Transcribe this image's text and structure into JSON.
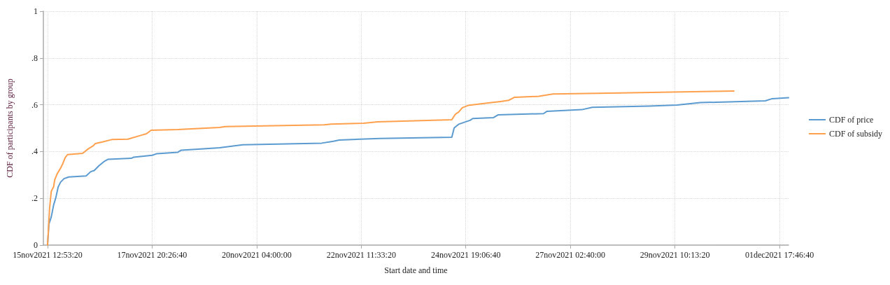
{
  "chart_data": {
    "type": "line",
    "xlabel": "Start date and time",
    "ylabel": "CDF of participants by group",
    "xlim": [
      "2021-11-15T10:40",
      "2021-12-01T22:35"
    ],
    "xticks": [
      {
        "value": "2021-11-15T12:53:20",
        "label": "15nov2021 12:53:20"
      },
      {
        "value": "2021-11-17T20:26:40",
        "label": "17nov2021 20:26:40"
      },
      {
        "value": "2021-11-20T04:00:00",
        "label": "20nov2021 04:00:00"
      },
      {
        "value": "2021-11-22T11:33:20",
        "label": "22nov2021 11:33:20"
      },
      {
        "value": "2021-11-24T19:06:40",
        "label": "24nov2021 19:06:40"
      },
      {
        "value": "2021-11-27T02:40:00",
        "label": "27nov2021 02:40:00"
      },
      {
        "value": "2021-11-29T10:13:20",
        "label": "29nov2021 10:13:20"
      },
      {
        "value": "2021-12-01T17:46:40",
        "label": "01dec2021 17:46:40"
      }
    ],
    "ylim": [
      0,
      1
    ],
    "yticks": [
      0,
      {
        "value": 0.2,
        "label": ".2"
      },
      {
        "value": 0.4,
        "label": ".4"
      },
      {
        "value": 0.6,
        "label": ".6"
      },
      {
        "value": 0.8,
        "label": ".8"
      },
      1
    ],
    "grid": true,
    "legend": "right",
    "marker": "none",
    "line_style": "solid",
    "series": [
      {
        "name": "CDF of price",
        "color": "#5b9bd0",
        "x": [
          "2021-11-15T12:53",
          "2021-11-15T13:37",
          "2021-11-15T14:51",
          "2021-11-15T16:06",
          "2021-11-15T17:19",
          "2021-11-15T18:33",
          "2021-11-15T19:48",
          "2021-11-15T21:39",
          "2021-11-16T00:06",
          "2021-11-16T09:21",
          "2021-11-16T11:50",
          "2021-11-16T13:41",
          "2021-11-16T16:10",
          "2021-11-16T19:14",
          "2021-11-16T21:05",
          "2021-11-17T09:24",
          "2021-11-17T10:40",
          "2021-11-17T20:31",
          "2021-11-17T23:00",
          "2021-11-18T10:06",
          "2021-11-18T11:57",
          "2021-11-18T22:25",
          "2021-11-19T08:18",
          "2021-11-19T20:38",
          "2021-11-21T14:36",
          "2021-11-21T20:45",
          "2021-11-21T23:51",
          "2021-11-22T21:26",
          "2021-11-24T11:40",
          "2021-11-24T12:55",
          "2021-11-24T15:22",
          "2021-11-24T21:33",
          "2021-11-24T22:46",
          "2021-11-25T09:52",
          "2021-11-25T12:21",
          "2021-11-26T12:24",
          "2021-11-26T14:15",
          "2021-11-27T08:46",
          "2021-11-27T14:19",
          "2021-11-28T20:33",
          "2021-11-29T11:21",
          "2021-11-29T23:41",
          "2021-12-01T10:13",
          "2021-12-01T13:55",
          "2021-12-01T22:35"
        ],
        "values": [
          0,
          0.09,
          0.12,
          0.171,
          0.204,
          0.249,
          0.269,
          0.284,
          0.291,
          0.296,
          0.314,
          0.319,
          0.339,
          0.359,
          0.367,
          0.371,
          0.376,
          0.384,
          0.391,
          0.397,
          0.406,
          0.411,
          0.416,
          0.429,
          0.436,
          0.444,
          0.449,
          0.456,
          0.461,
          0.501,
          0.517,
          0.534,
          0.541,
          0.545,
          0.557,
          0.562,
          0.572,
          0.579,
          0.589,
          0.594,
          0.599,
          0.609,
          0.617,
          0.626,
          0.63
        ]
      },
      {
        "name": "CDF of subsidy",
        "color": "#ffa04d",
        "x": [
          "2021-11-15T12:53",
          "2021-11-15T14:00",
          "2021-11-15T14:51",
          "2021-11-15T16:06",
          "2021-11-15T16:42",
          "2021-11-15T17:57",
          "2021-11-15T19:48",
          "2021-11-15T21:02",
          "2021-11-15T22:15",
          "2021-11-15T23:30",
          "2021-11-16T07:30",
          "2021-11-16T10:37",
          "2021-11-16T13:03",
          "2021-11-16T14:19",
          "2021-11-16T18:01",
          "2021-11-16T22:56",
          "2021-11-17T07:33",
          "2021-11-17T14:22",
          "2021-11-17T17:26",
          "2021-11-17T19:55",
          "2021-11-18T10:06",
          "2021-11-19T08:18",
          "2021-11-19T11:22",
          "2021-11-21T15:49",
          "2021-11-21T19:31",
          "2021-11-22T12:48",
          "2021-11-22T20:13",
          "2021-11-24T11:40",
          "2021-11-24T13:31",
          "2021-11-24T15:22",
          "2021-11-24T17:13",
          "2021-11-24T20:19",
          "2021-11-25T08:39",
          "2021-11-25T13:34",
          "2021-11-25T17:54",
          "2021-11-25T20:58",
          "2021-11-26T09:56",
          "2021-11-26T17:20",
          "2021-11-28T10:40",
          "2021-11-30T17:34"
        ],
        "values": [
          0,
          0.16,
          0.23,
          0.249,
          0.279,
          0.304,
          0.329,
          0.349,
          0.374,
          0.387,
          0.392,
          0.412,
          0.424,
          0.434,
          0.441,
          0.451,
          0.453,
          0.469,
          0.476,
          0.491,
          0.494,
          0.503,
          0.507,
          0.514,
          0.517,
          0.521,
          0.527,
          0.536,
          0.559,
          0.569,
          0.587,
          0.597,
          0.609,
          0.614,
          0.619,
          0.632,
          0.636,
          0.646,
          0.651,
          0.659
        ]
      }
    ]
  }
}
